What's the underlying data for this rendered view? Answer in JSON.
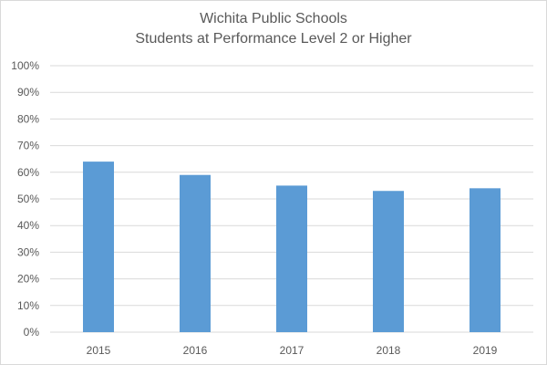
{
  "chart_data": {
    "type": "bar",
    "title": "Wichita Public Schools",
    "subtitle": "Students at Performance Level 2 or Higher",
    "categories": [
      "2015",
      "2016",
      "2017",
      "2018",
      "2019"
    ],
    "values": [
      64,
      59,
      55,
      53,
      54
    ],
    "ylim": [
      0,
      100
    ],
    "y_ticks": [
      0,
      10,
      20,
      30,
      40,
      50,
      60,
      70,
      80,
      90,
      100
    ],
    "y_tick_labels": [
      "0%",
      "10%",
      "20%",
      "30%",
      "40%",
      "50%",
      "60%",
      "70%",
      "80%",
      "90%",
      "100%"
    ],
    "grid": true,
    "legend": "none",
    "xlabel": "",
    "ylabel": "",
    "bar_color": "#5b9bd5",
    "grid_color": "#d9d9d9",
    "text_color": "#595959"
  }
}
